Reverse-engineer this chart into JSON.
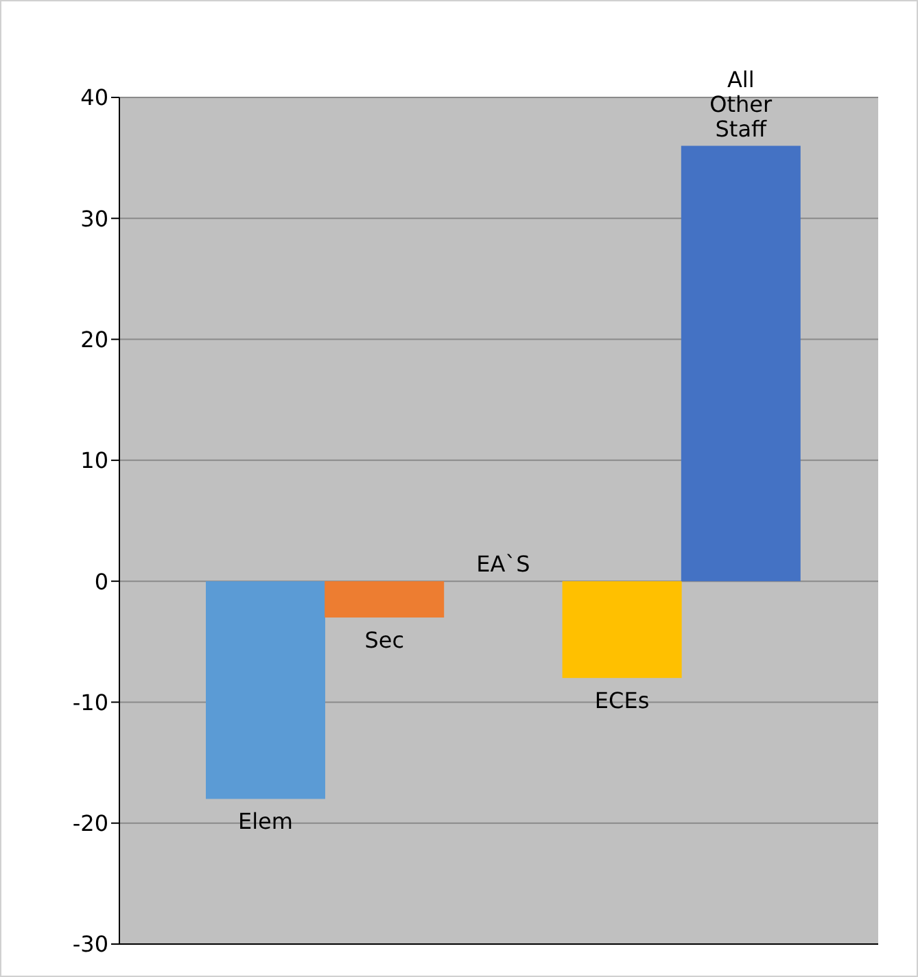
{
  "chart_data": {
    "type": "bar",
    "categories": [
      "Elem",
      "Sec",
      "EA`S",
      "ECEs",
      "All Other Staff"
    ],
    "values": [
      -18,
      -3,
      0,
      -8,
      36
    ],
    "colors": [
      "#5b9bd5",
      "#ed7d31",
      "#a5a5a5",
      "#ffc000",
      "#4472c4"
    ],
    "ylim": [
      -30,
      40
    ],
    "yticks": [
      -30,
      -20,
      -10,
      0,
      10,
      20,
      30,
      40
    ],
    "grid": "y",
    "tick_labels": "y"
  }
}
